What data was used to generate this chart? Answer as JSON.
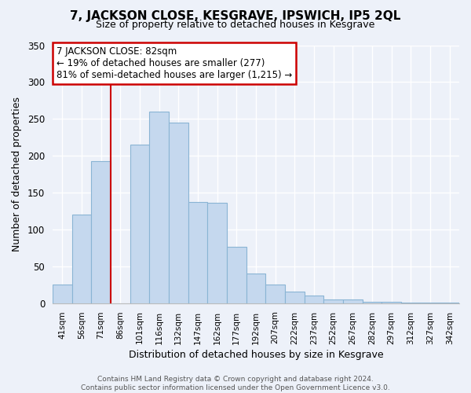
{
  "title": "7, JACKSON CLOSE, KESGRAVE, IPSWICH, IP5 2QL",
  "subtitle": "Size of property relative to detached houses in Kesgrave",
  "xlabel": "Distribution of detached houses by size in Kesgrave",
  "ylabel": "Number of detached properties",
  "bar_labels": [
    "41sqm",
    "56sqm",
    "71sqm",
    "86sqm",
    "101sqm",
    "116sqm",
    "132sqm",
    "147sqm",
    "162sqm",
    "177sqm",
    "192sqm",
    "207sqm",
    "222sqm",
    "237sqm",
    "252sqm",
    "267sqm",
    "282sqm",
    "297sqm",
    "312sqm",
    "327sqm",
    "342sqm"
  ],
  "bar_values": [
    25,
    120,
    193,
    0,
    215,
    260,
    245,
    137,
    136,
    76,
    40,
    25,
    16,
    10,
    5,
    5,
    2,
    2,
    1,
    1,
    1
  ],
  "bar_color": "#c5d8ee",
  "bar_edge_color": "#8ab4d4",
  "vline_color": "#cc0000",
  "ylim": [
    0,
    350
  ],
  "yticks": [
    0,
    50,
    100,
    150,
    200,
    250,
    300,
    350
  ],
  "annotation_title": "7 JACKSON CLOSE: 82sqm",
  "annotation_line1": "← 19% of detached houses are smaller (277)",
  "annotation_line2": "81% of semi-detached houses are larger (1,215) →",
  "annotation_box_color": "#ffffff",
  "annotation_box_edge_color": "#cc0000",
  "footer_line1": "Contains HM Land Registry data © Crown copyright and database right 2024.",
  "footer_line2": "Contains public sector information licensed under the Open Government Licence v3.0.",
  "background_color": "#edf1f9"
}
